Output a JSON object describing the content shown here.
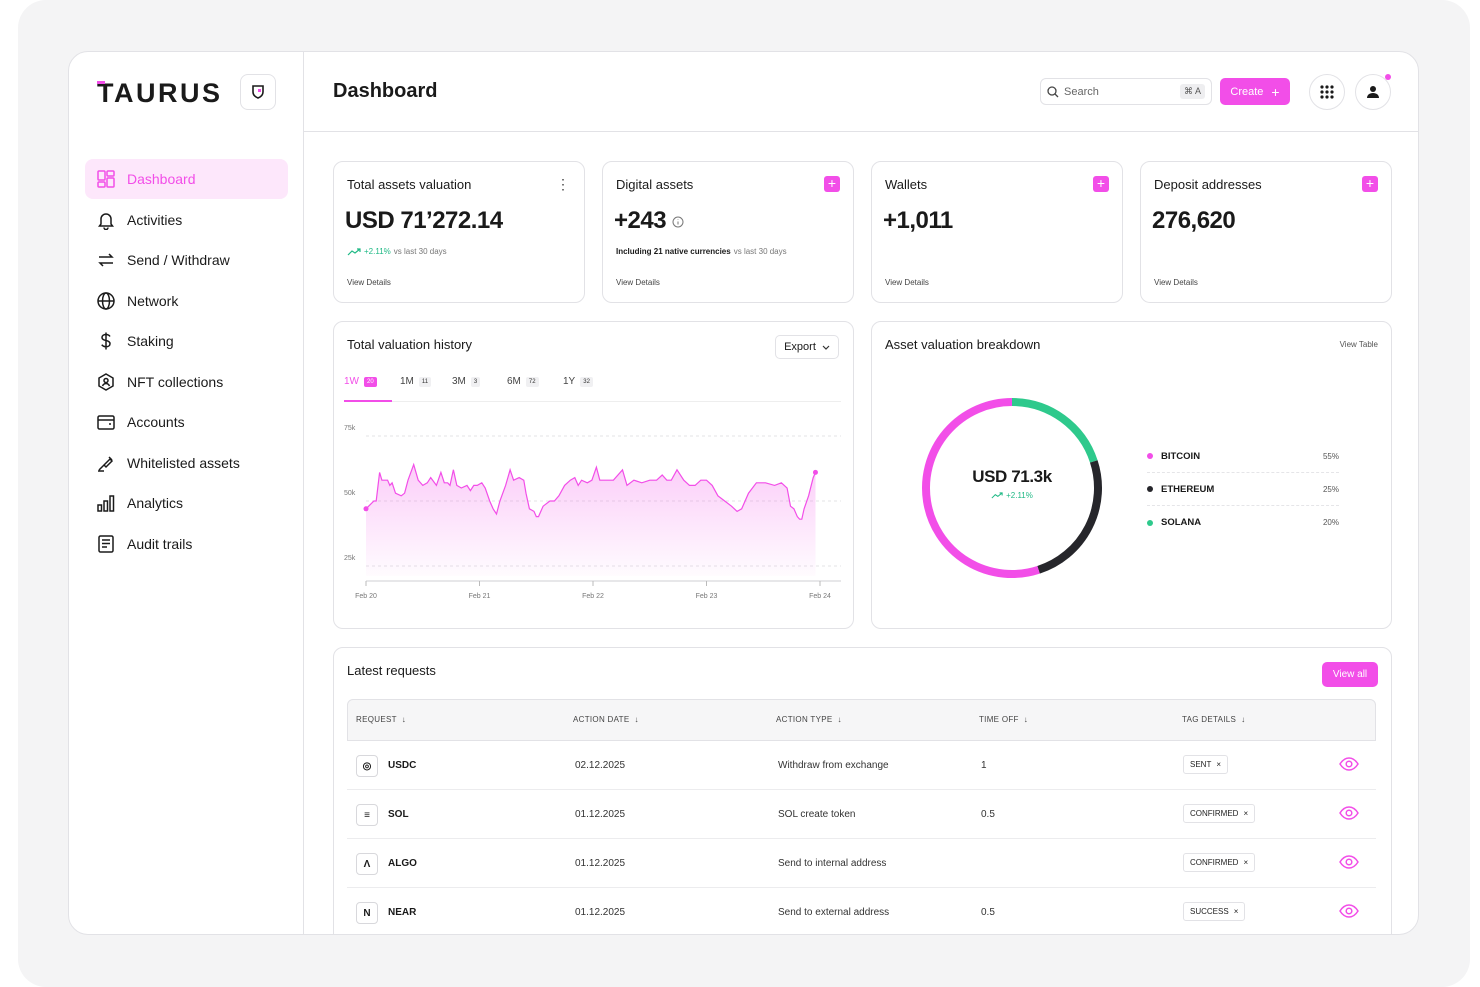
{
  "brand": {
    "name": "TAURUS"
  },
  "sidebar": {
    "items": [
      {
        "label": "Dashboard",
        "icon": "dashboard-icon",
        "active": true
      },
      {
        "label": "Activities",
        "icon": "bell-icon"
      },
      {
        "label": "Send / Withdraw",
        "icon": "transfer-icon"
      },
      {
        "label": "Network",
        "icon": "globe-icon"
      },
      {
        "label": "Staking",
        "icon": "dollar-icon"
      },
      {
        "label": "NFT collections",
        "icon": "nft-icon"
      },
      {
        "label": "Accounts",
        "icon": "wallet-icon"
      },
      {
        "label": "Whitelisted assets",
        "icon": "whitelist-icon"
      },
      {
        "label": "Analytics",
        "icon": "bar-chart-icon"
      },
      {
        "label": "Audit trails",
        "icon": "document-icon"
      }
    ]
  },
  "header": {
    "title": "Dashboard",
    "search_placeholder": "Search",
    "search_shortcut": "⌘ A",
    "create_label": "Create"
  },
  "stats": [
    {
      "title": "Total assets valuation",
      "value": "USD 71’272.14",
      "change": "+2.11%",
      "note": "vs last 30 days",
      "link": "View Details"
    },
    {
      "title": "Digital assets",
      "value": "+243",
      "note_bold": "Including 21 native currencies",
      "note": "vs last 30 days",
      "link": "View Details"
    },
    {
      "title": "Wallets",
      "value": "+1,011",
      "link": "View Details"
    },
    {
      "title": "Deposit addresses",
      "value": "276,620",
      "link": "View Details"
    }
  ],
  "history": {
    "title": "Total valuation history",
    "export_label": "Export",
    "tabs": [
      {
        "label": "1W",
        "count": "20"
      },
      {
        "label": "1M",
        "count": "11"
      },
      {
        "label": "3M",
        "count": "3"
      },
      {
        "label": "6M",
        "count": "72"
      },
      {
        "label": "1Y",
        "count": "32"
      }
    ]
  },
  "chart_data": {
    "type": "area",
    "x": [
      "Feb 20",
      "Feb 21",
      "Feb 22",
      "Feb 23",
      "Feb 24"
    ],
    "yticks": [
      "75k",
      "50k",
      "25k"
    ],
    "ylim": [
      25,
      75
    ],
    "series": [
      {
        "color": "#f24ee8",
        "points": [
          [
            0.0,
            47
          ],
          [
            0.07,
            50
          ],
          [
            0.09,
            50
          ],
          [
            0.12,
            61
          ],
          [
            0.14,
            58
          ],
          [
            0.19,
            58
          ],
          [
            0.21,
            56
          ],
          [
            0.23,
            57
          ],
          [
            0.26,
            53
          ],
          [
            0.31,
            52
          ],
          [
            0.34,
            53
          ],
          [
            0.37,
            58
          ],
          [
            0.42,
            64
          ],
          [
            0.46,
            58
          ],
          [
            0.5,
            56
          ],
          [
            0.54,
            57
          ],
          [
            0.57,
            59
          ],
          [
            0.62,
            56
          ],
          [
            0.66,
            61
          ],
          [
            0.69,
            57
          ],
          [
            0.72,
            57
          ],
          [
            0.74,
            56
          ],
          [
            0.77,
            62
          ],
          [
            0.8,
            56
          ],
          [
            0.84,
            55
          ],
          [
            0.89,
            56
          ],
          [
            0.92,
            54
          ],
          [
            0.95,
            56
          ],
          [
            0.98,
            56
          ],
          [
            1.02,
            57
          ],
          [
            1.05,
            55
          ],
          [
            1.09,
            50
          ],
          [
            1.12,
            47
          ],
          [
            1.15,
            45
          ],
          [
            1.18,
            50
          ],
          [
            1.23,
            56
          ],
          [
            1.27,
            62
          ],
          [
            1.3,
            58
          ],
          [
            1.35,
            59
          ],
          [
            1.39,
            58
          ],
          [
            1.41,
            53
          ],
          [
            1.44,
            47
          ],
          [
            1.48,
            46
          ],
          [
            1.5,
            44
          ],
          [
            1.52,
            44
          ],
          [
            1.56,
            48
          ],
          [
            1.62,
            50
          ],
          [
            1.66,
            50
          ],
          [
            1.7,
            52
          ],
          [
            1.75,
            56
          ],
          [
            1.8,
            58
          ],
          [
            1.84,
            59
          ],
          [
            1.87,
            56
          ],
          [
            1.9,
            58
          ],
          [
            1.95,
            57
          ],
          [
            1.99,
            58
          ],
          [
            2.03,
            63
          ],
          [
            2.06,
            58
          ],
          [
            2.11,
            58
          ],
          [
            2.18,
            58
          ],
          [
            2.26,
            62
          ],
          [
            2.3,
            56
          ],
          [
            2.36,
            58
          ],
          [
            2.43,
            57
          ],
          [
            2.5,
            58
          ],
          [
            2.56,
            58
          ],
          [
            2.61,
            60
          ],
          [
            2.65,
            58
          ],
          [
            2.69,
            58
          ],
          [
            2.74,
            62
          ],
          [
            2.8,
            58
          ],
          [
            2.85,
            56
          ],
          [
            2.9,
            56
          ],
          [
            2.95,
            58
          ],
          [
            3.0,
            58
          ],
          [
            3.05,
            56
          ],
          [
            3.1,
            52
          ],
          [
            3.16,
            50
          ],
          [
            3.22,
            48
          ],
          [
            3.27,
            46
          ],
          [
            3.31,
            47
          ],
          [
            3.37,
            53
          ],
          [
            3.44,
            57
          ],
          [
            3.52,
            57
          ],
          [
            3.6,
            56
          ],
          [
            3.66,
            57
          ],
          [
            3.71,
            55
          ],
          [
            3.74,
            48
          ],
          [
            3.77,
            47
          ],
          [
            3.8,
            44
          ],
          [
            3.82,
            43
          ],
          [
            3.84,
            43
          ],
          [
            3.86,
            47
          ],
          [
            3.9,
            52
          ],
          [
            3.94,
            59
          ],
          [
            3.96,
            61
          ]
        ]
      }
    ]
  },
  "breakdown": {
    "title": "Asset valuation breakdown",
    "view_table": "View Table",
    "center_value": "USD 71.3k",
    "center_change": "+2.11%",
    "segments": [
      {
        "name": "BITCOIN",
        "pct": "55%",
        "value": 55,
        "color": "#f24ee8"
      },
      {
        "name": "ETHEREUM",
        "pct": "25%",
        "value": 25,
        "color": "#26262b"
      },
      {
        "name": "SOLANA",
        "pct": "20%",
        "value": 20,
        "color": "#2ec98c"
      }
    ]
  },
  "requests": {
    "title": "Latest requests",
    "view_all": "View all",
    "columns": [
      "REQUEST",
      "ACTION DATE",
      "ACTION TYPE",
      "TIME OFF",
      "TAG DETAILS"
    ],
    "rows": [
      {
        "asset": "USDC",
        "icon": "usdc-icon",
        "glyph": "◎",
        "date": "02.12.2025",
        "type": "Withdraw from exchange",
        "time": "1",
        "tag": "SENT"
      },
      {
        "asset": "SOL",
        "icon": "sol-icon",
        "glyph": "≡",
        "date": "01.12.2025",
        "type": "SOL create token",
        "time": "0.5",
        "tag": "CONFIRMED"
      },
      {
        "asset": "ALGO",
        "icon": "algo-icon",
        "glyph": "Λ",
        "date": "01.12.2025",
        "type": "Send to internal address",
        "time": "",
        "tag": "CONFIRMED"
      },
      {
        "asset": "NEAR",
        "icon": "near-icon",
        "glyph": "N",
        "date": "01.12.2025",
        "type": "Send to external address",
        "time": "0.5",
        "tag": "SUCCESS"
      }
    ]
  }
}
